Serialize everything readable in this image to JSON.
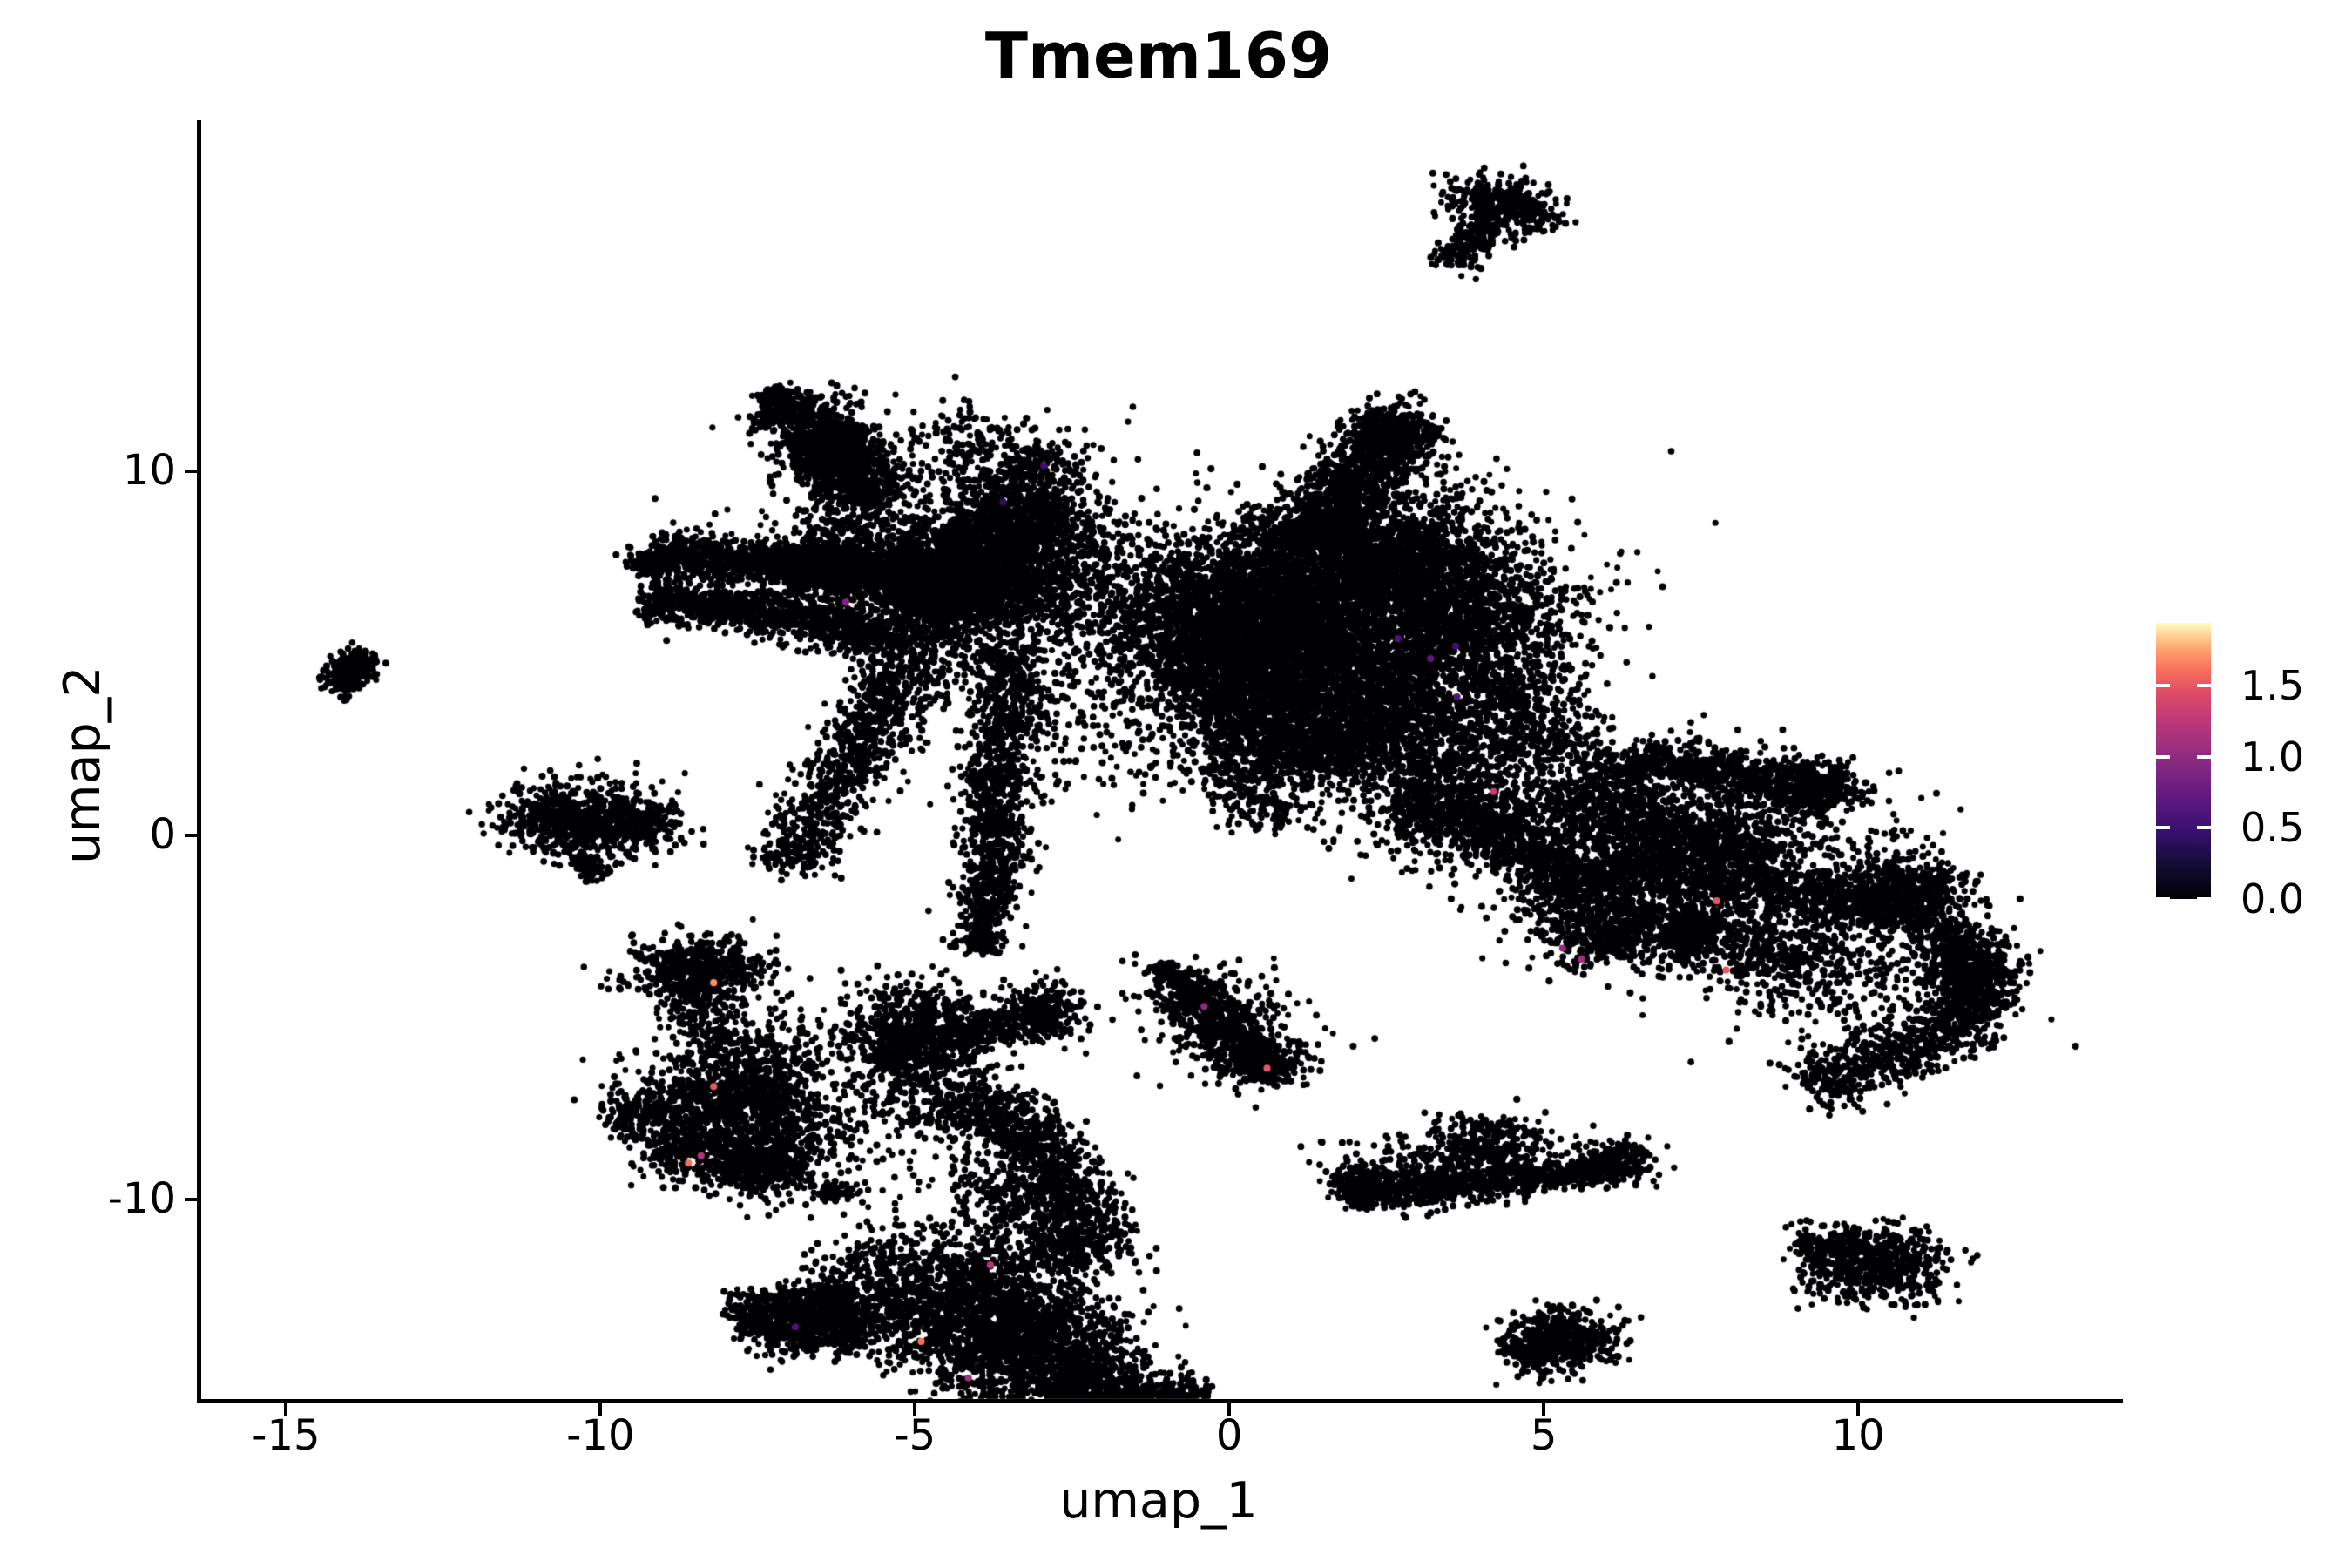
{
  "page": {
    "background": "#ffffff"
  },
  "chart_data": {
    "type": "scatter",
    "title": "Tmem169",
    "xlabel": "umap_1",
    "ylabel": "umap_2",
    "xlim": [
      -16.39,
      14.14
    ],
    "ylim": [
      -15.48,
      19.59
    ],
    "x_ticks": [
      -15,
      -10,
      -5,
      0,
      5,
      10
    ],
    "x_tick_labels": [
      "-15",
      "-10",
      "-5",
      "0",
      "5",
      "10"
    ],
    "y_ticks": [
      10,
      0,
      -10
    ],
    "y_tick_labels": [
      "10",
      "0",
      "-10"
    ],
    "grid": false,
    "point_color": "#000004",
    "colorbar": {
      "position": "right",
      "vmin": 0,
      "vmax": 1.94,
      "ticks": [
        1.5,
        1.0,
        0.5,
        0.0
      ],
      "tick_labels": [
        "1.5",
        "1.0",
        "0.5",
        "0.0"
      ],
      "colormap": "magma",
      "stops": [
        [
          0.0,
          "#000004"
        ],
        [
          0.13,
          "#140e36"
        ],
        [
          0.25,
          "#3b0f70"
        ],
        [
          0.38,
          "#641a80"
        ],
        [
          0.5,
          "#8c2981"
        ],
        [
          0.63,
          "#b73779"
        ],
        [
          0.74,
          "#de4968"
        ],
        [
          0.83,
          "#f7705c"
        ],
        [
          0.9,
          "#fe9f6d"
        ],
        [
          0.96,
          "#fed799"
        ],
        [
          1.0,
          "#fcfdbf"
        ]
      ]
    },
    "clusters": [
      {
        "t": "s",
        "x1": -7.05,
        "y1": 12.0,
        "x2": -5.6,
        "y2": 9.1,
        "w": 0.4,
        "n": 950
      },
      {
        "t": "s",
        "x1": -7.35,
        "y1": 12.25,
        "x2": -7.0,
        "y2": 11.85,
        "w": 0.14,
        "n": 70
      },
      {
        "t": "g",
        "x": -6.1,
        "y": 9.9,
        "sx": 0.55,
        "sy": 0.85,
        "r": 0,
        "n": 220
      },
      {
        "t": "s",
        "x1": -6.55,
        "y1": 11.1,
        "x2": -5.95,
        "y2": 10.15,
        "w": 0.28,
        "n": 280
      },
      {
        "t": "s",
        "x1": -9.2,
        "y1": 7.72,
        "x2": -6.85,
        "y2": 7.42,
        "w": 0.3,
        "n": 700
      },
      {
        "t": "s",
        "x1": -9.38,
        "y1": 7.3,
        "x2": -9.15,
        "y2": 7.68,
        "w": 0.18,
        "n": 90
      },
      {
        "t": "s",
        "x1": -9.25,
        "y1": 6.45,
        "x2": -6.95,
        "y2": 6.05,
        "w": 0.28,
        "n": 600
      },
      {
        "t": "s",
        "x1": -7.0,
        "y1": 6.1,
        "x2": -5.3,
        "y2": 5.3,
        "w": 0.33,
        "n": 450
      },
      {
        "t": "s",
        "x1": -6.9,
        "y1": 7.5,
        "x2": -3.8,
        "y2": 6.6,
        "w": 0.45,
        "n": 1900
      },
      {
        "t": "g",
        "x": -5.3,
        "y": 8.3,
        "sx": 1.0,
        "sy": 0.45,
        "r": 0,
        "n": 260
      },
      {
        "t": "s",
        "x1": -7.1,
        "y1": -0.9,
        "x2": -3.1,
        "y2": 10.6,
        "w": 0.34,
        "n": 1500
      },
      {
        "t": "g",
        "x": -5.2,
        "y": 3.5,
        "sx": 0.45,
        "sy": 1.6,
        "r": -18,
        "n": 220
      },
      {
        "t": "g",
        "x": -3.55,
        "y": 7.5,
        "sx": 0.8,
        "sy": 1.05,
        "r": -15,
        "n": 2000
      },
      {
        "t": "s",
        "x1": -3.45,
        "y1": 5.2,
        "x2": -3.75,
        "y2": -0.6,
        "w": 0.3,
        "n": 850
      },
      {
        "t": "s",
        "x1": -3.75,
        "y1": -0.6,
        "x2": -3.95,
        "y2": -3.2,
        "w": 0.22,
        "n": 380
      },
      {
        "t": "g",
        "x": -1.9,
        "y": 4.2,
        "sx": 0.95,
        "sy": 1.7,
        "r": 0,
        "n": 300
      },
      {
        "t": "g",
        "x": -1.2,
        "y": 6.6,
        "sx": 0.8,
        "sy": 0.8,
        "r": 0,
        "n": 170
      },
      {
        "t": "g",
        "x": -3.0,
        "y": 9.6,
        "sx": 0.6,
        "sy": 0.9,
        "r": 0,
        "n": 200
      },
      {
        "t": "g",
        "x": -4.3,
        "y": 10.8,
        "sx": 0.45,
        "sy": 0.6,
        "r": 0,
        "n": 130
      },
      {
        "t": "s",
        "x1": 1.15,
        "y1": 7.9,
        "x2": 2.7,
        "y2": 11.3,
        "w": 0.4,
        "n": 1200
      },
      {
        "t": "g",
        "x": 2.62,
        "y": 11.15,
        "sx": 0.3,
        "sy": 0.38,
        "r": 0,
        "n": 220
      },
      {
        "t": "g",
        "x": 0.6,
        "y": 6.7,
        "sx": 1.15,
        "sy": 0.95,
        "r": 8,
        "n": 1700
      },
      {
        "t": "g",
        "x": 2.45,
        "y": 7.6,
        "sx": 0.85,
        "sy": 0.8,
        "r": 0,
        "n": 1400
      },
      {
        "t": "g",
        "x": 3.9,
        "y": 6.2,
        "sx": 0.8,
        "sy": 0.95,
        "r": 0,
        "n": 1000
      },
      {
        "t": "g",
        "x": 1.5,
        "y": 5.1,
        "sx": 1.5,
        "sy": 0.85,
        "r": 0,
        "n": 1700
      },
      {
        "t": "g",
        "x": -0.15,
        "y": 5.5,
        "sx": 0.7,
        "sy": 0.95,
        "r": 0,
        "n": 750
      },
      {
        "t": "s",
        "x1": -0.6,
        "y1": 4.4,
        "x2": 3.5,
        "y2": 3.5,
        "w": 0.75,
        "n": 1300
      },
      {
        "t": "g",
        "x": 1.2,
        "y": 2.7,
        "sx": 1.25,
        "sy": 0.8,
        "r": 0,
        "n": 800
      },
      {
        "t": "g",
        "x": 3.1,
        "y": 1.6,
        "sx": 0.9,
        "sy": 1.0,
        "r": 0,
        "n": 550
      },
      {
        "t": "s",
        "x1": -0.1,
        "y1": 3.4,
        "x2": 2.1,
        "y2": 2.0,
        "w": 0.5,
        "n": 500
      },
      {
        "t": "s",
        "x1": 4.3,
        "y1": 4.6,
        "x2": 5.3,
        "y2": 1.9,
        "w": 0.5,
        "n": 480
      },
      {
        "t": "g",
        "x": 3.8,
        "y": 1.8,
        "sx": 0.6,
        "sy": 1.1,
        "r": 0,
        "n": 300
      },
      {
        "t": "s",
        "x1": 3.0,
        "y1": 0.8,
        "x2": 5.2,
        "y2": -0.5,
        "w": 0.5,
        "n": 650
      },
      {
        "t": "s",
        "x1": 5.1,
        "y1": -0.4,
        "x2": 6.15,
        "y2": -3.3,
        "w": 0.45,
        "n": 650
      },
      {
        "t": "s",
        "x1": 0.0,
        "y1": 2.1,
        "x2": 0.7,
        "y2": 0.3,
        "w": 0.4,
        "n": 220
      },
      {
        "t": "g",
        "x": 3.4,
        "y": 9.0,
        "sx": 0.5,
        "sy": 0.8,
        "r": 0,
        "n": 110
      },
      {
        "t": "g",
        "x": 1.5,
        "y": 6.5,
        "sx": 2.2,
        "sy": 1.5,
        "r": 0,
        "n": 400
      },
      {
        "t": "s",
        "x1": 5.15,
        "y1": 0.4,
        "x2": 6.5,
        "y2": 2.0,
        "w": 0.38,
        "n": 380
      },
      {
        "t": "s",
        "x1": 6.5,
        "y1": 2.1,
        "x2": 9.6,
        "y2": 1.2,
        "w": 0.33,
        "n": 750
      },
      {
        "t": "g",
        "x": 9.5,
        "y": 1.35,
        "sx": 0.3,
        "sy": 0.35,
        "r": 0,
        "n": 150
      },
      {
        "t": "s",
        "x1": 6.0,
        "y1": 0.6,
        "x2": 8.6,
        "y2": -0.6,
        "w": 0.4,
        "n": 650
      },
      {
        "t": "s",
        "x1": 6.0,
        "y1": -0.85,
        "x2": 11.25,
        "y2": -2.1,
        "w": 0.42,
        "n": 1250
      },
      {
        "t": "g",
        "x": 10.75,
        "y": -1.55,
        "sx": 0.5,
        "sy": 0.5,
        "r": 0,
        "n": 450
      },
      {
        "t": "g",
        "x": 7.9,
        "y": 0.3,
        "sx": 1.5,
        "sy": 0.95,
        "r": 0,
        "n": 650
      },
      {
        "t": "s",
        "x1": 6.1,
        "y1": -2.3,
        "x2": 9.2,
        "y2": -3.3,
        "w": 0.5,
        "n": 500
      },
      {
        "t": "g",
        "x": 7.35,
        "y": -2.65,
        "sx": 0.28,
        "sy": 0.38,
        "r": 0,
        "n": 220
      },
      {
        "t": "s",
        "x1": 11.5,
        "y1": -2.5,
        "x2": 11.95,
        "y2": -4.9,
        "w": 0.34,
        "n": 450
      },
      {
        "t": "s",
        "x1": 11.85,
        "y1": -5.0,
        "x2": 9.25,
        "y2": -6.95,
        "w": 0.4,
        "n": 600
      },
      {
        "t": "g",
        "x": 11.9,
        "y": -3.9,
        "sx": 0.33,
        "sy": 0.5,
        "r": 0,
        "n": 220
      },
      {
        "t": "g",
        "x": 9.6,
        "y": -3.6,
        "sx": 1.2,
        "sy": 0.95,
        "r": 0,
        "n": 420
      },
      {
        "t": "g",
        "x": 5.6,
        "y": -1.5,
        "sx": 0.7,
        "sy": 1.2,
        "r": 0,
        "n": 260
      },
      {
        "t": "g",
        "x": -8.45,
        "y": -3.75,
        "sx": 0.55,
        "sy": 0.45,
        "r": 0,
        "n": 600
      },
      {
        "t": "s",
        "x1": -8.6,
        "y1": -4.4,
        "x2": -8.1,
        "y2": -5.9,
        "w": 0.28,
        "n": 130
      },
      {
        "t": "g",
        "x": -7.3,
        "y": -5.7,
        "sx": 0.5,
        "sy": 0.45,
        "r": 0,
        "n": 110
      },
      {
        "t": "s",
        "x1": -9.75,
        "y1": -7.9,
        "x2": -7.1,
        "y2": -7.0,
        "w": 0.42,
        "n": 650
      },
      {
        "t": "s",
        "x1": -9.0,
        "y1": -8.45,
        "x2": -6.9,
        "y2": -9.35,
        "w": 0.42,
        "n": 550
      },
      {
        "t": "g",
        "x": -7.3,
        "y": -8.0,
        "sx": 0.75,
        "sy": 0.8,
        "r": -20,
        "n": 600
      },
      {
        "t": "g",
        "x": -7.9,
        "y": -6.4,
        "sx": 0.8,
        "sy": 0.5,
        "r": 0,
        "n": 220
      },
      {
        "t": "g",
        "x": -5.05,
        "y": -5.6,
        "sx": 0.55,
        "sy": 0.75,
        "r": 0,
        "n": 800
      },
      {
        "t": "s",
        "x1": -4.45,
        "y1": -5.5,
        "x2": -2.75,
        "y2": -5.05,
        "w": 0.26,
        "n": 280
      },
      {
        "t": "g",
        "x": -2.95,
        "y": -4.75,
        "sx": 0.3,
        "sy": 0.38,
        "r": 0,
        "n": 200
      },
      {
        "t": "g",
        "x": -4.6,
        "y": -7.4,
        "sx": 0.6,
        "sy": 0.7,
        "r": 0,
        "n": 180
      },
      {
        "t": "g",
        "x": -6.25,
        "y": -9.8,
        "sx": 0.17,
        "sy": 0.14,
        "r": 0,
        "n": 70
      },
      {
        "t": "s",
        "x1": -7.85,
        "y1": -13.3,
        "x2": -6.0,
        "y2": -12.6,
        "w": 0.33,
        "n": 420
      },
      {
        "t": "s",
        "x1": -7.4,
        "y1": -13.85,
        "x2": -5.9,
        "y2": -13.4,
        "w": 0.3,
        "n": 320
      },
      {
        "t": "g",
        "x": -6.15,
        "y": -13.15,
        "sx": 0.5,
        "sy": 0.45,
        "r": 0,
        "n": 320
      },
      {
        "t": "g",
        "x": -5.5,
        "y": -11.9,
        "sx": 0.7,
        "sy": 0.6,
        "r": 0,
        "n": 220
      },
      {
        "t": "s",
        "x1": -4.3,
        "y1": -7.2,
        "x2": -2.65,
        "y2": -9.4,
        "w": 0.4,
        "n": 550,
        "b": 0.3
      },
      {
        "t": "s",
        "x1": -2.65,
        "y1": -9.4,
        "x2": -2.3,
        "y2": -11.7,
        "w": 0.45,
        "n": 550
      },
      {
        "t": "g",
        "x": -3.6,
        "y": -9.9,
        "sx": 0.65,
        "sy": 0.8,
        "r": 0,
        "n": 240
      },
      {
        "t": "g",
        "x": -3.9,
        "y": -12.9,
        "sx": 0.9,
        "sy": 1.0,
        "r": 15,
        "n": 1500
      },
      {
        "t": "g",
        "x": -3.0,
        "y": -14.4,
        "sx": 0.85,
        "sy": 0.7,
        "r": 0,
        "n": 1000
      },
      {
        "t": "s",
        "x1": -2.7,
        "y1": -15.1,
        "x2": -0.9,
        "y2": -15.45,
        "w": 0.33,
        "n": 450
      },
      {
        "t": "s",
        "x1": -0.9,
        "y1": -15.45,
        "x2": -0.35,
        "y2": -15.2,
        "w": 0.2,
        "n": 80
      },
      {
        "t": "s",
        "x1": -0.9,
        "y1": -3.95,
        "x2": 0.65,
        "y2": -6.45,
        "w": 0.34,
        "n": 600
      },
      {
        "t": "s",
        "x1": -0.8,
        "y1": -3.8,
        "x2": 0.9,
        "y2": -6.6,
        "w": 0.75,
        "n": 220
      },
      {
        "t": "g",
        "x": 0.55,
        "y": -6.3,
        "sx": 0.3,
        "sy": 0.3,
        "r": 0,
        "n": 170
      },
      {
        "t": "s",
        "x1": -1.15,
        "y1": -3.55,
        "x2": -0.8,
        "y2": -4.0,
        "w": 0.12,
        "n": 70
      },
      {
        "t": "s",
        "x1": 1.85,
        "y1": -9.8,
        "x2": 6.3,
        "y2": -9.05,
        "w": 0.26,
        "n": 900,
        "b": -0.12
      },
      {
        "t": "g",
        "x": 2.15,
        "y": -9.6,
        "sx": 0.3,
        "sy": 0.3,
        "r": 0,
        "n": 170
      },
      {
        "t": "g",
        "x": 4.1,
        "y": -8.55,
        "sx": 0.5,
        "sy": 0.45,
        "r": 0,
        "n": 300
      },
      {
        "t": "g",
        "x": 6.2,
        "y": -8.95,
        "sx": 0.3,
        "sy": 0.27,
        "r": 0,
        "n": 170
      },
      {
        "t": "g",
        "x": 3.2,
        "y": -8.9,
        "sx": 0.9,
        "sy": 0.4,
        "r": 0,
        "n": 130
      },
      {
        "t": "g",
        "x": 5.25,
        "y": -13.85,
        "sx": 0.45,
        "sy": 0.42,
        "r": 20,
        "n": 480
      },
      {
        "t": "s",
        "x1": 4.55,
        "y1": -14.35,
        "x2": 5.0,
        "y2": -13.9,
        "w": 0.2,
        "n": 110
      },
      {
        "t": "g",
        "x": 10.25,
        "y": -11.75,
        "sx": 0.55,
        "sy": 0.5,
        "r": -20,
        "n": 650
      },
      {
        "t": "s",
        "x1": 9.0,
        "y1": -11.3,
        "x2": 9.75,
        "y2": -11.25,
        "w": 0.14,
        "n": 70
      },
      {
        "t": "s",
        "x1": -14.2,
        "y1": 4.05,
        "x2": -13.75,
        "y2": 5.0,
        "w": 0.17,
        "n": 300
      },
      {
        "t": "g",
        "x": -14.05,
        "y": 3.75,
        "sx": 0.05,
        "sy": 0.05,
        "r": 0,
        "n": 8
      },
      {
        "t": "g",
        "x": -10.45,
        "y": 0.45,
        "sx": 0.55,
        "sy": 0.48,
        "r": 0,
        "n": 600
      },
      {
        "t": "g",
        "x": -9.7,
        "y": 0.3,
        "sx": 0.38,
        "sy": 0.38,
        "r": 0,
        "n": 230
      },
      {
        "t": "s",
        "x1": -10.35,
        "y1": -0.55,
        "x2": -10.05,
        "y2": -1.15,
        "w": 0.14,
        "n": 90
      },
      {
        "t": "g",
        "x": -9.15,
        "y": 0.3,
        "sx": 0.35,
        "sy": 0.45,
        "r": 0,
        "n": 70
      },
      {
        "t": "g",
        "x": 4.35,
        "y": 17.3,
        "sx": 0.42,
        "sy": 0.38,
        "r": -30,
        "n": 380
      },
      {
        "t": "s",
        "x1": 3.5,
        "y1": 15.65,
        "x2": 4.05,
        "y2": 16.75,
        "w": 0.2,
        "n": 170
      },
      {
        "t": "g",
        "x": 4.72,
        "y": 16.65,
        "sx": 0.05,
        "sy": 0.05,
        "r": 0,
        "n": 6
      }
    ],
    "expressing_cells": [
      {
        "x": -2.95,
        "y": 10.15,
        "value": 0.5
      },
      {
        "x": -3.6,
        "y": 9.15,
        "value": 0.4
      },
      {
        "x": -6.1,
        "y": 6.4,
        "value": 0.9
      },
      {
        "x": 2.68,
        "y": 5.4,
        "value": 0.6
      },
      {
        "x": 3.2,
        "y": 4.85,
        "value": 0.7
      },
      {
        "x": 3.6,
        "y": 5.2,
        "value": 0.5
      },
      {
        "x": 3.62,
        "y": 3.8,
        "value": 0.6
      },
      {
        "x": 4.2,
        "y": 1.2,
        "value": 1.3
      },
      {
        "x": 5.3,
        "y": -3.1,
        "value": 1.0
      },
      {
        "x": 5.6,
        "y": -3.4,
        "value": 1.1
      },
      {
        "x": 7.75,
        "y": -1.8,
        "value": 1.5
      },
      {
        "x": 7.9,
        "y": -3.7,
        "value": 1.5
      },
      {
        "x": -8.2,
        "y": -4.05,
        "value": 1.7
      },
      {
        "x": -8.2,
        "y": -6.9,
        "value": 1.5
      },
      {
        "x": -8.6,
        "y": -9.0,
        "value": 1.6
      },
      {
        "x": -8.4,
        "y": -8.8,
        "value": 1.2
      },
      {
        "x": -6.9,
        "y": -13.5,
        "value": 0.6
      },
      {
        "x": -4.9,
        "y": -13.9,
        "value": 1.6
      },
      {
        "x": -4.15,
        "y": -14.9,
        "value": 1.1
      },
      {
        "x": -3.8,
        "y": -11.8,
        "value": 1.2
      },
      {
        "x": 0.6,
        "y": -6.4,
        "value": 1.5
      },
      {
        "x": -0.4,
        "y": -4.7,
        "value": 1.0
      }
    ]
  }
}
